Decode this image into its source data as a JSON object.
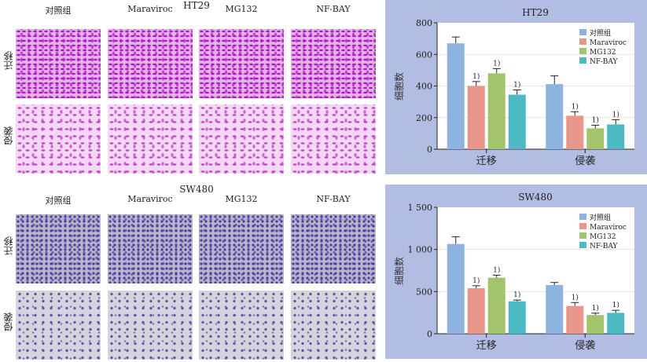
{
  "left": {
    "groups": [
      "对照组",
      "Maraviroc",
      "MG132",
      "NF-BAY"
    ],
    "rows": [
      "迁移",
      "侵袭"
    ],
    "panels": [
      {
        "title": "HT29"
      },
      {
        "title": "SW480"
      }
    ]
  },
  "colors": {
    "对照组": "#8db3e0",
    "Maraviroc": "#e8968a",
    "MG132": "#a3c46a",
    "NF-BAY": "#4cbac4",
    "panel_bg": "#b3bde3"
  },
  "chart_data": [
    {
      "type": "bar",
      "title": "HT29",
      "ylabel": "细胞数",
      "xlabel": "",
      "categories": [
        "迁移",
        "侵袭"
      ],
      "ylim": [
        0,
        800
      ],
      "yticks": [
        0,
        200,
        400,
        600,
        800
      ],
      "ytick_labels": [
        "0",
        "200",
        "400",
        "600",
        "800"
      ],
      "grid": true,
      "legend": "top-right",
      "annotation": "1)",
      "series": [
        {
          "name": "对照组",
          "values": [
            670,
            412
          ],
          "errors": [
            40,
            52
          ],
          "marked": [
            false,
            false
          ]
        },
        {
          "name": "Maraviroc",
          "values": [
            400,
            212
          ],
          "errors": [
            28,
            25
          ],
          "marked": [
            true,
            true
          ]
        },
        {
          "name": "MG132",
          "values": [
            480,
            132
          ],
          "errors": [
            30,
            20
          ],
          "marked": [
            true,
            true
          ]
        },
        {
          "name": "NF-BAY",
          "values": [
            345,
            157
          ],
          "errors": [
            30,
            30
          ],
          "marked": [
            true,
            true
          ]
        }
      ]
    },
    {
      "type": "bar",
      "title": "SW480",
      "ylabel": "细胞数",
      "xlabel": "",
      "categories": [
        "迁移",
        "侵袭"
      ],
      "ylim": [
        0,
        1500
      ],
      "yticks": [
        0,
        500,
        1000,
        1500
      ],
      "ytick_labels": [
        "0",
        "500",
        "1 000",
        "1 500"
      ],
      "grid": true,
      "legend": "top-right",
      "annotation": "1)",
      "series": [
        {
          "name": "对照组",
          "values": [
            1065,
            578
          ],
          "errors": [
            85,
            30
          ],
          "marked": [
            false,
            false
          ]
        },
        {
          "name": "Maraviroc",
          "values": [
            540,
            330
          ],
          "errors": [
            30,
            40
          ],
          "marked": [
            true,
            true
          ]
        },
        {
          "name": "MG132",
          "values": [
            665,
            222
          ],
          "errors": [
            30,
            22
          ],
          "marked": [
            true,
            true
          ]
        },
        {
          "name": "NF-BAY",
          "values": [
            385,
            248
          ],
          "errors": [
            15,
            30
          ],
          "marked": [
            true,
            true
          ]
        }
      ]
    }
  ]
}
